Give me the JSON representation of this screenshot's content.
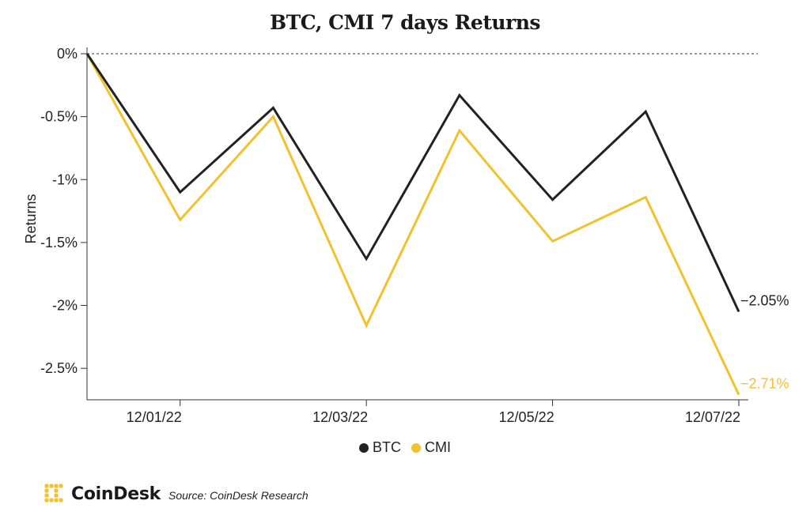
{
  "chart_data": {
    "type": "line",
    "title": "BTC, CMI 7 days Returns",
    "ylabel": "Returns",
    "xlabel": "",
    "ylim": [
      -2.75,
      0
    ],
    "yticks": [
      0,
      -0.5,
      -1,
      -1.5,
      -2,
      -2.5
    ],
    "ytick_labels": [
      "0%",
      "-0.5%",
      "-1%",
      "-1.5%",
      "-2%",
      "-2.5%"
    ],
    "x": [
      "11/30/22",
      "12/01/22",
      "12/02/22",
      "12/03/22",
      "12/04/22",
      "12/05/22",
      "12/06/22",
      "12/07/22"
    ],
    "xtick_labels": [
      "12/01/22",
      "12/03/22",
      "12/05/22",
      "12/07/22"
    ],
    "series": [
      {
        "name": "BTC",
        "color": "#222222",
        "values": [
          0,
          -1.1,
          -0.43,
          -1.63,
          -0.33,
          -1.16,
          -0.46,
          -2.05
        ],
        "end_label": "−2.05%"
      },
      {
        "name": "CMI",
        "color": "#f2c12e",
        "values": [
          0,
          -1.32,
          -0.5,
          -2.16,
          -0.61,
          -1.49,
          -1.14,
          -2.71
        ],
        "end_label": "−2.71%"
      }
    ],
    "legend": "bottom-center",
    "zero_line": "dashed"
  },
  "footer": {
    "brand": "CoinDesk",
    "source": "Source: CoinDesk Research"
  },
  "logo_color": "#f2c12e"
}
